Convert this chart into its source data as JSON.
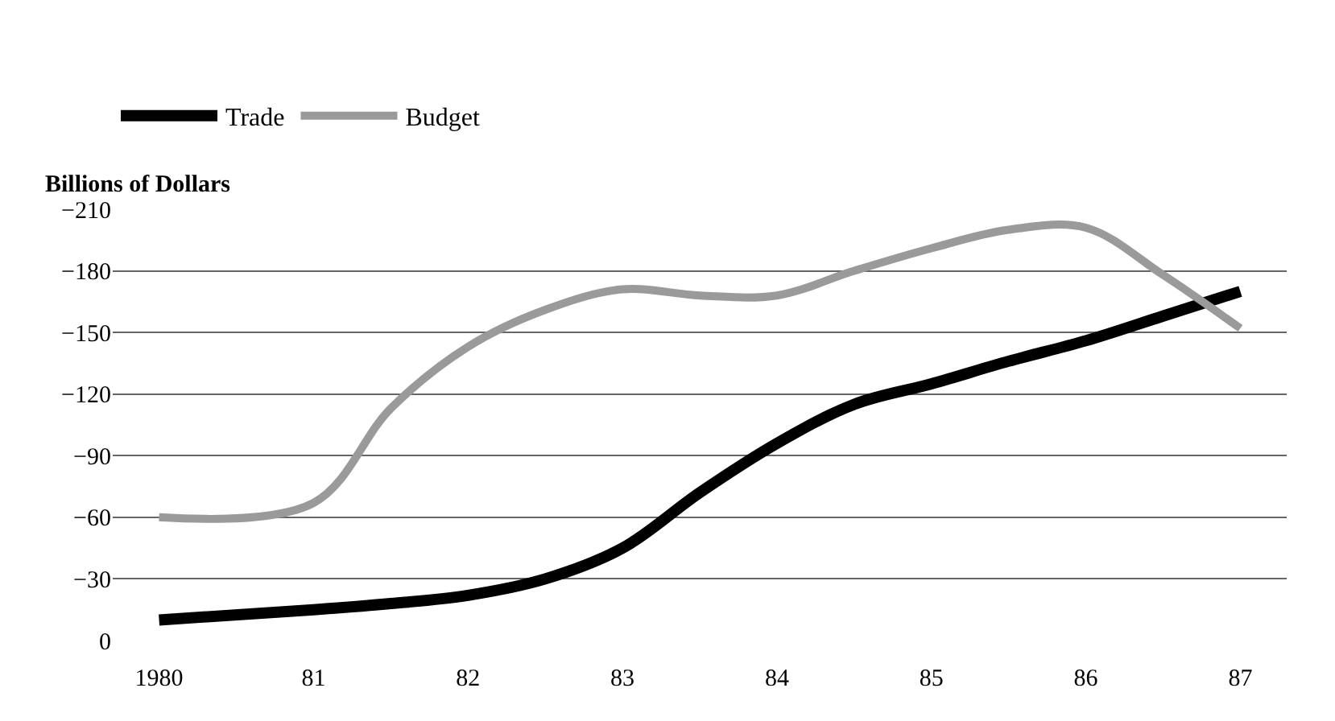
{
  "chart_data": {
    "type": "line",
    "ylabel": "Billions of Dollars",
    "x": [
      1980,
      1981,
      1981.5,
      1982,
      1982.5,
      1983,
      1983.5,
      1984,
      1984.5,
      1985,
      1985.5,
      1986,
      1986.5,
      1987
    ],
    "series": [
      {
        "name": "Trade",
        "color": "#000000",
        "values": [
          -10,
          -15,
          -18,
          -22,
          -30,
          -45,
          -72,
          -96,
          -115,
          -125,
          -136,
          -146,
          -158,
          -170
        ]
      },
      {
        "name": "Budget",
        "color": "#9a9a9a",
        "values": [
          -60,
          -67,
          -113,
          -143,
          -161,
          -171,
          -168,
          -168,
          -180,
          -191,
          -200,
          -201,
          -178,
          -152
        ]
      }
    ],
    "xlim": [
      1979.7,
      1987.3
    ],
    "ylim": [
      0,
      -210
    ],
    "xticks": [
      {
        "value": 1980,
        "label": "1980"
      },
      {
        "value": 1981,
        "label": "81"
      },
      {
        "value": 1982,
        "label": "82"
      },
      {
        "value": 1983,
        "label": "83"
      },
      {
        "value": 1984,
        "label": "84"
      },
      {
        "value": 1985,
        "label": "85"
      },
      {
        "value": 1986,
        "label": "86"
      },
      {
        "value": 1987,
        "label": "87"
      }
    ],
    "yticks": [
      0,
      -30,
      -60,
      -90,
      -120,
      -150,
      -180,
      -210
    ],
    "grid": "y",
    "legend": "top left",
    "marker": "none",
    "line_style": "solid"
  }
}
